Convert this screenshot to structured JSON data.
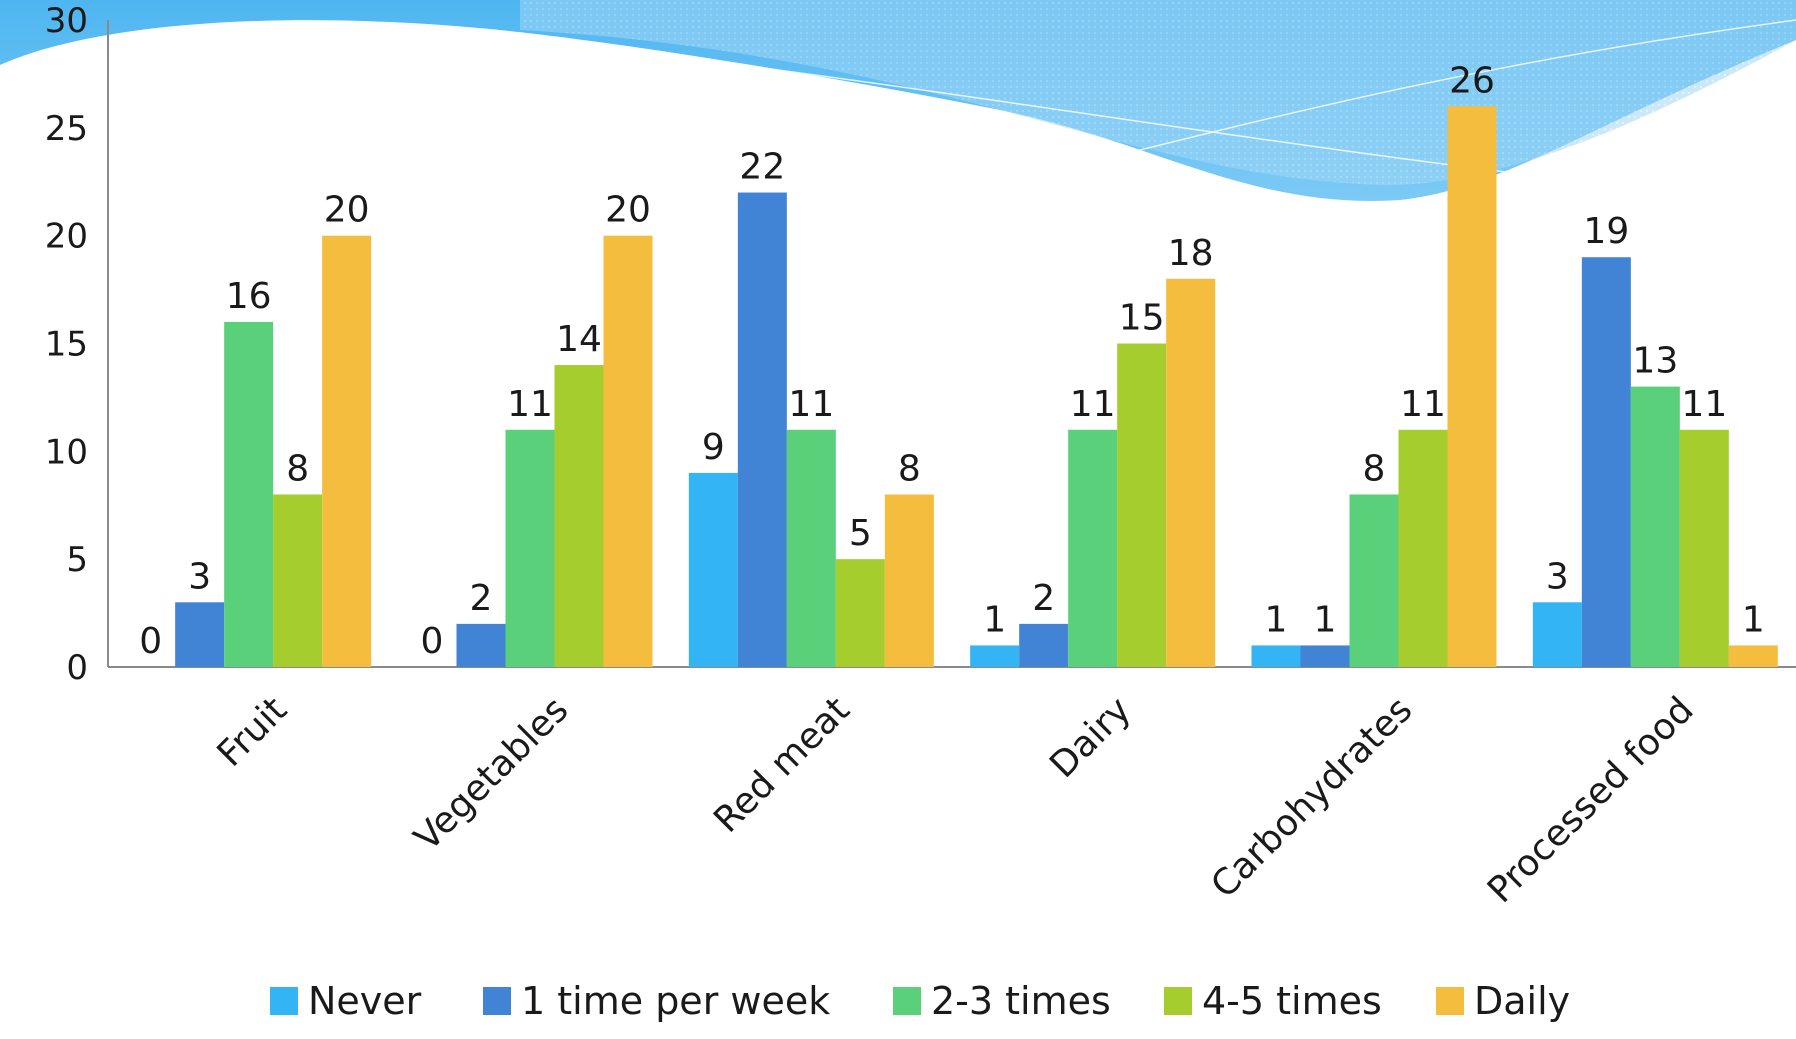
{
  "chart_data": {
    "type": "bar",
    "categories": [
      "Fruit",
      "Vegetables",
      "Red meat",
      "Dairy",
      "Carbohydrates",
      "Processed food"
    ],
    "series": [
      {
        "name": "Never",
        "color": "#33B5F5",
        "values": [
          0,
          0,
          9,
          1,
          1,
          3
        ]
      },
      {
        "name": "1 time per week",
        "color": "#4184D6",
        "values": [
          3,
          2,
          22,
          2,
          1,
          19
        ]
      },
      {
        "name": "2-3 times",
        "color": "#5BD07A",
        "values": [
          16,
          11,
          11,
          11,
          8,
          13
        ]
      },
      {
        "name": "4-5 times",
        "color": "#A5CD2E",
        "values": [
          8,
          14,
          5,
          15,
          11,
          11
        ]
      },
      {
        "name": "Daily",
        "color": "#F4BD3D",
        "values": [
          20,
          20,
          8,
          18,
          26,
          1
        ]
      }
    ],
    "yticks": [
      0,
      5,
      10,
      15,
      20,
      25,
      30
    ],
    "ylim": [
      0,
      30
    ],
    "grid": false,
    "data_labels": true,
    "legend_position": "bottom",
    "background": {
      "wave_color": "#5BBCF2",
      "wave_light": "#A8DBF7"
    }
  }
}
